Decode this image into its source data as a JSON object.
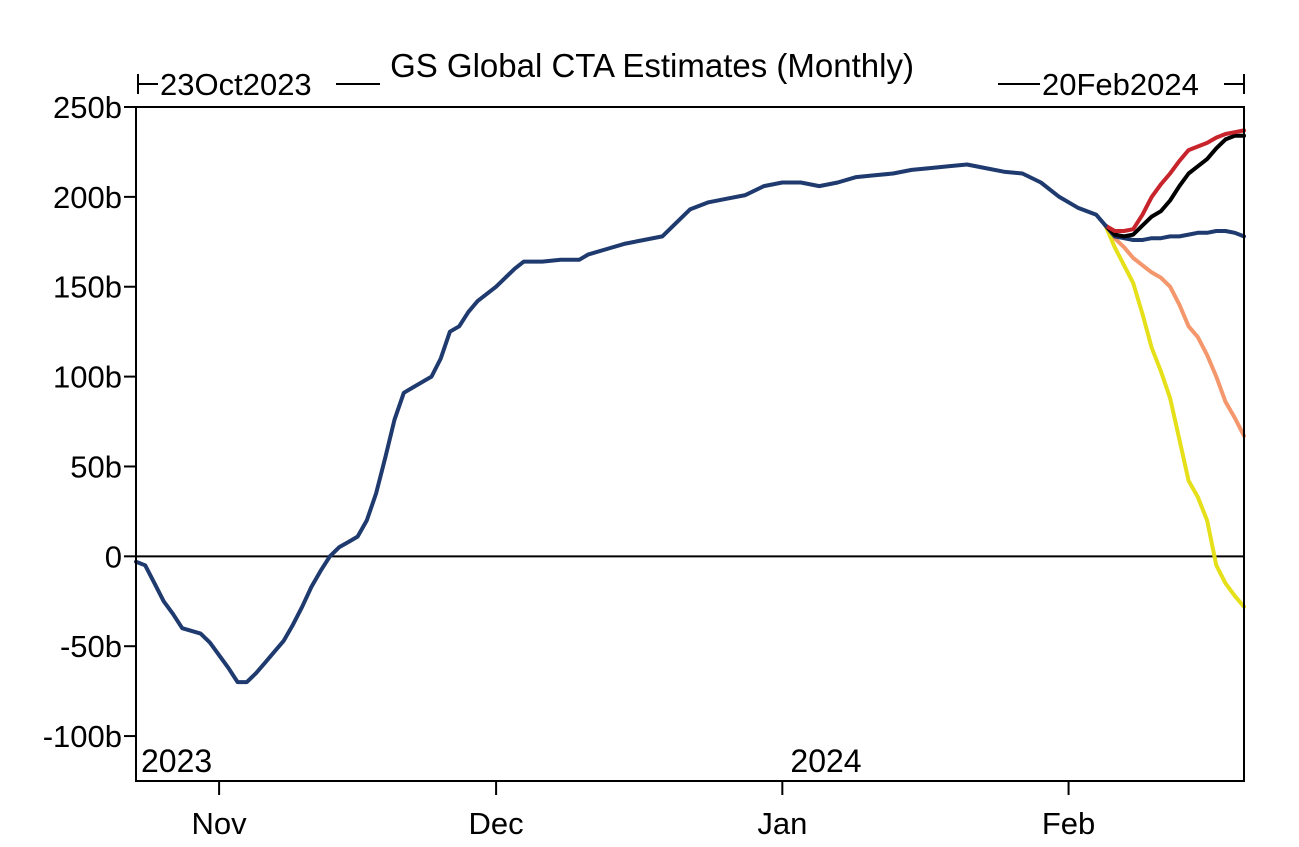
{
  "chart_data": {
    "type": "line",
    "title": "GS Global CTA Estimates (Monthly)",
    "range_start_label": "23Oct2023",
    "range_end_label": "20Feb2024",
    "x_start": "2023-10-23",
    "x_end": "2024-02-20",
    "ylim": [
      -125,
      250
    ],
    "y_ticks": [
      {
        "value": 250,
        "label": "250b"
      },
      {
        "value": 200,
        "label": "200b"
      },
      {
        "value": 150,
        "label": "150b"
      },
      {
        "value": 100,
        "label": "100b"
      },
      {
        "value": 50,
        "label": "50b"
      },
      {
        "value": 0,
        "label": "0"
      },
      {
        "value": -50,
        "label": "-50b"
      },
      {
        "value": -100,
        "label": "-100b"
      }
    ],
    "x_ticks": [
      {
        "date": "2023-11-01",
        "label": "Nov"
      },
      {
        "date": "2023-12-01",
        "label": "Dec"
      },
      {
        "date": "2024-01-01",
        "label": "Jan"
      },
      {
        "date": "2024-02-01",
        "label": "Feb"
      }
    ],
    "year_labels": [
      "2023",
      "2024"
    ],
    "zero_line": true,
    "grid": false,
    "legend": "none",
    "series": [
      {
        "color": "#1f3a6e",
        "points": [
          [
            "2023-10-23",
            -3
          ],
          [
            "2023-10-24",
            -5
          ],
          [
            "2023-10-25",
            -15
          ],
          [
            "2023-10-26",
            -25
          ],
          [
            "2023-10-27",
            -32
          ],
          [
            "2023-10-28",
            -40
          ],
          [
            "2023-10-30",
            -43
          ],
          [
            "2023-10-31",
            -48
          ],
          [
            "2023-11-01",
            -55
          ],
          [
            "2023-11-02",
            -62
          ],
          [
            "2023-11-03",
            -70
          ],
          [
            "2023-11-04",
            -70
          ],
          [
            "2023-11-05",
            -65
          ],
          [
            "2023-11-06",
            -59
          ],
          [
            "2023-11-07",
            -53
          ],
          [
            "2023-11-08",
            -47
          ],
          [
            "2023-11-09",
            -38
          ],
          [
            "2023-11-10",
            -28
          ],
          [
            "2023-11-11",
            -17
          ],
          [
            "2023-11-12",
            -8
          ],
          [
            "2023-11-13",
            0
          ],
          [
            "2023-11-14",
            5
          ],
          [
            "2023-11-15",
            8
          ],
          [
            "2023-11-16",
            11
          ],
          [
            "2023-11-17",
            20
          ],
          [
            "2023-11-18",
            35
          ],
          [
            "2023-11-19",
            55
          ],
          [
            "2023-11-20",
            76
          ],
          [
            "2023-11-21",
            91
          ],
          [
            "2023-11-22",
            94
          ],
          [
            "2023-11-24",
            100
          ],
          [
            "2023-11-25",
            110
          ],
          [
            "2023-11-26",
            125
          ],
          [
            "2023-11-27",
            128
          ],
          [
            "2023-11-28",
            136
          ],
          [
            "2023-11-29",
            142
          ],
          [
            "2023-12-01",
            150
          ],
          [
            "2023-12-03",
            160
          ],
          [
            "2023-12-04",
            164
          ],
          [
            "2023-12-06",
            164
          ],
          [
            "2023-12-08",
            165
          ],
          [
            "2023-12-10",
            165
          ],
          [
            "2023-12-11",
            168
          ],
          [
            "2023-12-13",
            171
          ],
          [
            "2023-12-15",
            174
          ],
          [
            "2023-12-17",
            176
          ],
          [
            "2023-12-19",
            178
          ],
          [
            "2023-12-20",
            183
          ],
          [
            "2023-12-22",
            193
          ],
          [
            "2023-12-24",
            197
          ],
          [
            "2023-12-26",
            199
          ],
          [
            "2023-12-28",
            201
          ],
          [
            "2023-12-30",
            206
          ],
          [
            "2024-01-01",
            208
          ],
          [
            "2024-01-03",
            208
          ],
          [
            "2024-01-05",
            206
          ],
          [
            "2024-01-07",
            208
          ],
          [
            "2024-01-09",
            211
          ],
          [
            "2024-01-11",
            212
          ],
          [
            "2024-01-13",
            213
          ],
          [
            "2024-01-15",
            215
          ],
          [
            "2024-01-17",
            216
          ],
          [
            "2024-01-19",
            217
          ],
          [
            "2024-01-21",
            218
          ],
          [
            "2024-01-23",
            216
          ],
          [
            "2024-01-25",
            214
          ],
          [
            "2024-01-27",
            213
          ],
          [
            "2024-01-29",
            208
          ],
          [
            "2024-01-31",
            200
          ],
          [
            "2024-02-02",
            194
          ],
          [
            "2024-02-04",
            190
          ],
          [
            "2024-02-05",
            184
          ]
        ]
      },
      {
        "color": "#1f3a6e",
        "points": [
          [
            "2024-02-05",
            184
          ],
          [
            "2024-02-06",
            178
          ],
          [
            "2024-02-07",
            177
          ],
          [
            "2024-02-08",
            176
          ],
          [
            "2024-02-09",
            176
          ],
          [
            "2024-02-10",
            177
          ],
          [
            "2024-02-11",
            177
          ],
          [
            "2024-02-12",
            178
          ],
          [
            "2024-02-13",
            178
          ],
          [
            "2024-02-14",
            179
          ],
          [
            "2024-02-15",
            180
          ],
          [
            "2024-02-16",
            180
          ],
          [
            "2024-02-17",
            181
          ],
          [
            "2024-02-18",
            181
          ],
          [
            "2024-02-19",
            180
          ],
          [
            "2024-02-20",
            178
          ]
        ]
      },
      {
        "color": "#c8242c",
        "points": [
          [
            "2024-02-05",
            184
          ],
          [
            "2024-02-06",
            181
          ],
          [
            "2024-02-07",
            181
          ],
          [
            "2024-02-08",
            182
          ],
          [
            "2024-02-09",
            190
          ],
          [
            "2024-02-10",
            200
          ],
          [
            "2024-02-11",
            207
          ],
          [
            "2024-02-12",
            213
          ],
          [
            "2024-02-13",
            220
          ],
          [
            "2024-02-14",
            226
          ],
          [
            "2024-02-15",
            228
          ],
          [
            "2024-02-16",
            230
          ],
          [
            "2024-02-17",
            233
          ],
          [
            "2024-02-18",
            235
          ],
          [
            "2024-02-19",
            236
          ],
          [
            "2024-02-20",
            237
          ]
        ]
      },
      {
        "color": "#000000",
        "points": [
          [
            "2024-02-05",
            184
          ],
          [
            "2024-02-06",
            179
          ],
          [
            "2024-02-07",
            178
          ],
          [
            "2024-02-08",
            179
          ],
          [
            "2024-02-09",
            184
          ],
          [
            "2024-02-10",
            189
          ],
          [
            "2024-02-11",
            192
          ],
          [
            "2024-02-12",
            198
          ],
          [
            "2024-02-13",
            206
          ],
          [
            "2024-02-14",
            213
          ],
          [
            "2024-02-15",
            217
          ],
          [
            "2024-02-16",
            221
          ],
          [
            "2024-02-17",
            227
          ],
          [
            "2024-02-18",
            232
          ],
          [
            "2024-02-19",
            234
          ],
          [
            "2024-02-20",
            234
          ]
        ]
      },
      {
        "color": "#f4976c",
        "points": [
          [
            "2024-02-05",
            184
          ],
          [
            "2024-02-06",
            177
          ],
          [
            "2024-02-07",
            172
          ],
          [
            "2024-02-08",
            166
          ],
          [
            "2024-02-09",
            162
          ],
          [
            "2024-02-10",
            158
          ],
          [
            "2024-02-11",
            155
          ],
          [
            "2024-02-12",
            150
          ],
          [
            "2024-02-13",
            140
          ],
          [
            "2024-02-14",
            128
          ],
          [
            "2024-02-15",
            122
          ],
          [
            "2024-02-16",
            112
          ],
          [
            "2024-02-17",
            100
          ],
          [
            "2024-02-18",
            86
          ],
          [
            "2024-02-19",
            77
          ],
          [
            "2024-02-20",
            67
          ]
        ]
      },
      {
        "color": "#e5e01a",
        "points": [
          [
            "2024-02-05",
            184
          ],
          [
            "2024-02-06",
            172
          ],
          [
            "2024-02-07",
            162
          ],
          [
            "2024-02-08",
            152
          ],
          [
            "2024-02-09",
            135
          ],
          [
            "2024-02-10",
            116
          ],
          [
            "2024-02-11",
            103
          ],
          [
            "2024-02-12",
            88
          ],
          [
            "2024-02-13",
            65
          ],
          [
            "2024-02-14",
            42
          ],
          [
            "2024-02-15",
            33
          ],
          [
            "2024-02-16",
            20
          ],
          [
            "2024-02-17",
            -5
          ],
          [
            "2024-02-18",
            -15
          ],
          [
            "2024-02-19",
            -22
          ],
          [
            "2024-02-20",
            -28
          ]
        ]
      }
    ]
  }
}
